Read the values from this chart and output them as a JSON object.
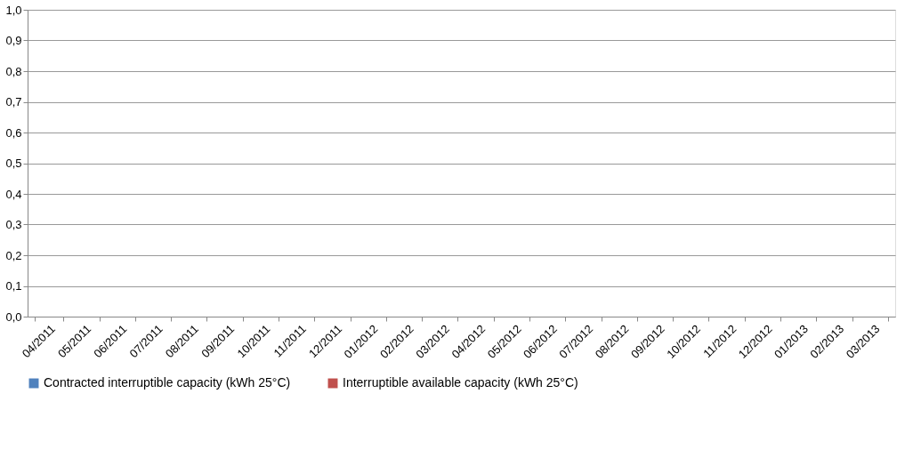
{
  "chart_data": {
    "type": "bar",
    "categories": [
      "04/2011",
      "05/2011",
      "06/2011",
      "07/2011",
      "08/2011",
      "09/2011",
      "10/2011",
      "11/2011",
      "12/2011",
      "01/2012",
      "02/2012",
      "03/2012",
      "04/2012",
      "05/2012",
      "06/2012",
      "07/2012",
      "08/2012",
      "09/2012",
      "10/2012",
      "11/2012",
      "12/2012",
      "01/2013",
      "02/2013",
      "03/2013"
    ],
    "series": [
      {
        "name": "Contracted interruptible capacity (kWh 25°C)",
        "color": "#4f81bd",
        "values": [
          null,
          null,
          null,
          null,
          null,
          null,
          null,
          null,
          null,
          null,
          null,
          null,
          null,
          null,
          null,
          null,
          null,
          null,
          null,
          null,
          null,
          null,
          null,
          null
        ]
      },
      {
        "name": "Interruptible available capacity (kWh 25°C)",
        "color": "#c0504d",
        "values": [
          null,
          null,
          null,
          null,
          null,
          null,
          null,
          null,
          null,
          null,
          null,
          null,
          null,
          null,
          null,
          null,
          null,
          null,
          null,
          null,
          null,
          null,
          null,
          null
        ]
      }
    ],
    "ylim": [
      0,
      1
    ],
    "yticks": [
      {
        "value": 0,
        "label": "0,0"
      },
      {
        "value": 0.1,
        "label": "0,1"
      },
      {
        "value": 0.2,
        "label": "0,2"
      },
      {
        "value": 0.3,
        "label": "0,3"
      },
      {
        "value": 0.4,
        "label": "0,4"
      },
      {
        "value": 0.5,
        "label": "0,5"
      },
      {
        "value": 0.6,
        "label": "0,6"
      },
      {
        "value": 0.7,
        "label": "0,7"
      },
      {
        "value": 0.8,
        "label": "0,8"
      },
      {
        "value": 0.9,
        "label": "0,9"
      },
      {
        "value": 1,
        "label": "1,0"
      }
    ],
    "grid": "y",
    "legend": "bottom"
  }
}
